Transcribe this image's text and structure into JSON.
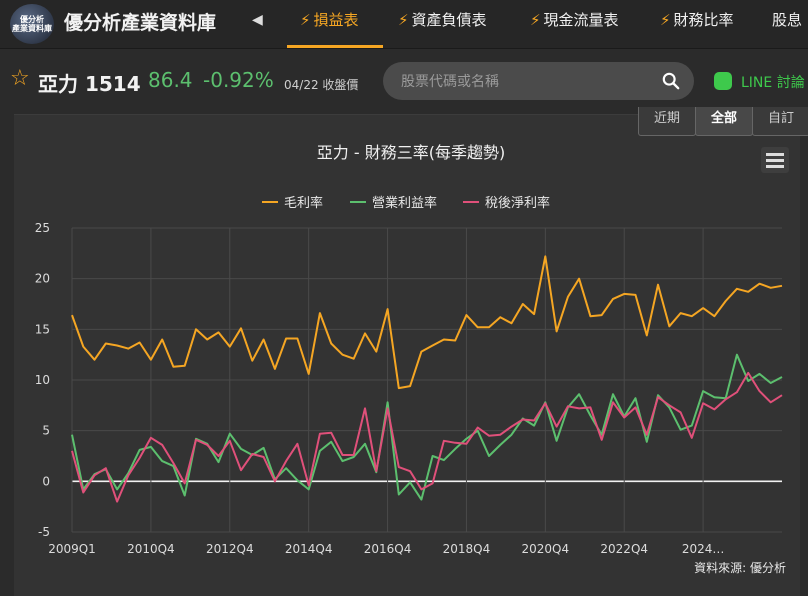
{
  "nav": {
    "logo_text": "優分析\n產業資料庫",
    "brand": "優分析產業資料庫",
    "tabs": [
      {
        "label": "損益表"
      },
      {
        "label": "資產負債表"
      },
      {
        "label": "現金流量表"
      },
      {
        "label": "財務比率"
      },
      {
        "label": "股息"
      }
    ]
  },
  "stock": {
    "name": "亞力 1514",
    "price": "86.4",
    "change": "-0.92%",
    "date_label": "04/22 收盤價"
  },
  "search": {
    "placeholder": "股票代碼或名稱"
  },
  "line": {
    "label": "LINE 討論"
  },
  "range_buttons": [
    {
      "label": "近期"
    },
    {
      "label": "全部"
    },
    {
      "label": "自訂"
    }
  ],
  "colors": {
    "accent": "#f5a623",
    "gross": "#f5a623",
    "operating": "#5cbf6e",
    "net": "#e0507a",
    "price_down": "#5cbf6e"
  },
  "chart_data": {
    "type": "line",
    "title": "亞力 - 財務三率(每季趨勢)",
    "source": "資料來源: 優分析",
    "legend_position": "top",
    "grid": true,
    "ylim": [
      -5,
      25
    ],
    "yticks": [
      "-5",
      "0",
      "5",
      "10",
      "15",
      "20",
      "25"
    ],
    "xticks": [
      "2009Q1",
      "2010Q4",
      "2012Q4",
      "2014Q4",
      "2016Q4",
      "2018Q4",
      "2020Q4",
      "2022Q4",
      "2024…"
    ],
    "x_start": "2009Q1",
    "x_end": "2024Q4",
    "series": [
      {
        "name": "毛利率",
        "values": [
          16.4,
          13.3,
          12.0,
          13.6,
          13.4,
          13.1,
          13.7,
          12.0,
          14.0,
          11.3,
          11.4,
          15.0,
          14.0,
          14.7,
          13.3,
          15.1,
          11.9,
          14.0,
          11.1,
          14.1,
          14.1,
          10.6,
          16.6,
          13.6,
          12.5,
          12.1,
          14.6,
          12.8,
          17.0,
          9.2,
          9.4,
          12.8,
          13.4,
          14.0,
          13.9,
          16.4,
          15.2,
          15.2,
          16.2,
          15.6,
          17.5,
          16.5,
          22.2,
          14.8,
          18.2,
          20.0,
          16.3,
          16.4,
          18.0,
          18.5,
          18.4,
          14.4,
          19.4,
          15.3,
          16.6,
          16.3,
          17.1,
          16.3,
          17.8,
          19.0,
          18.7,
          19.5,
          19.1,
          19.3
        ]
      },
      {
        "name": "營業利益率",
        "values": [
          4.6,
          -0.8,
          0.7,
          1.2,
          -0.8,
          0.8,
          3.1,
          3.4,
          2.0,
          1.5,
          -1.4,
          4.2,
          3.7,
          1.9,
          4.7,
          3.2,
          2.6,
          3.3,
          0.2,
          1.3,
          0.1,
          -0.8,
          3.0,
          3.9,
          2.0,
          2.4,
          3.7,
          0.9,
          7.8,
          -1.3,
          -0.1,
          -1.8,
          2.5,
          2.1,
          3.2,
          4.2,
          5.0,
          2.5,
          3.6,
          4.6,
          6.2,
          5.5,
          7.8,
          4.0,
          7.3,
          8.6,
          6.5,
          4.6,
          8.6,
          6.4,
          8.2,
          3.9,
          8.5,
          7.3,
          5.1,
          5.5,
          8.9,
          8.3,
          8.2,
          12.5,
          9.9,
          10.6,
          9.7,
          10.3
        ]
      },
      {
        "name": "稅後淨利率",
        "values": [
          3.0,
          -1.1,
          0.6,
          1.3,
          -2.0,
          0.6,
          2.3,
          4.3,
          3.6,
          1.8,
          -0.2,
          4.1,
          3.6,
          2.5,
          4.0,
          1.1,
          2.7,
          2.4,
          0.0,
          2.0,
          3.7,
          -0.4,
          4.7,
          4.8,
          2.6,
          2.6,
          7.2,
          1.0,
          7.2,
          1.4,
          1.0,
          -0.8,
          -0.2,
          4.0,
          3.8,
          3.7,
          5.3,
          4.5,
          4.6,
          5.4,
          6.1,
          6.0,
          7.7,
          5.4,
          7.4,
          7.2,
          7.3,
          4.1,
          7.8,
          6.3,
          7.3,
          4.6,
          8.3,
          7.5,
          6.8,
          4.3,
          7.7,
          7.1,
          8.1,
          8.8,
          10.7,
          8.9,
          7.8,
          8.5
        ]
      }
    ]
  }
}
